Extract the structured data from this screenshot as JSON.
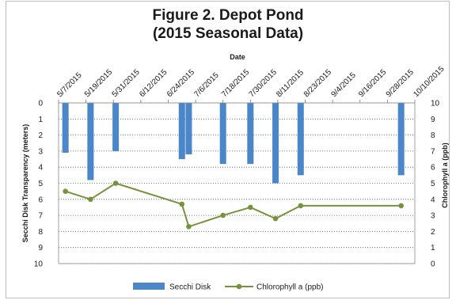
{
  "chart_data": {
    "type": "bar",
    "title": "Figure 2. Depot Pond",
    "subtitle": "(2015 Seasonal Data)",
    "xlabel": "Date",
    "ylabel_left": "Secchi Disk Transparency (meters)",
    "ylabel_right": "Chlorophyll a (ppb)",
    "x_ticks": [
      "5/7/2015",
      "5/19/2015",
      "5/31/2015",
      "6/12/2015",
      "6/24/2015",
      "7/6/2015",
      "7/18/2015",
      "7/30/2015",
      "8/11/2015",
      "8/23/2015",
      "9/4/2015",
      "9/16/2015",
      "9/28/2015",
      "10/10/2015"
    ],
    "x_range": [
      "5/7/2015",
      "10/10/2015"
    ],
    "ylim_left": [
      0,
      10
    ],
    "ylim_left_inverted": true,
    "ylim_right": [
      0,
      10
    ],
    "y_ticks_left": [
      "0",
      "1",
      "2",
      "3",
      "4",
      "5",
      "6",
      "7",
      "8",
      "9",
      "10"
    ],
    "y_ticks_right": [
      "10",
      "9",
      "8",
      "7",
      "6",
      "5",
      "4",
      "3",
      "2",
      "1",
      "0"
    ],
    "grid": true,
    "legend": "bottom",
    "series": [
      {
        "name": "Secchi Disk",
        "type": "bar",
        "axis": "left",
        "color": "#4a86c8",
        "points": [
          {
            "x": "5/10/2015",
            "y": 3.1
          },
          {
            "x": "5/21/2015",
            "y": 4.8
          },
          {
            "x": "6/1/2015",
            "y": 3.0
          },
          {
            "x": "6/30/2015",
            "y": 3.5
          },
          {
            "x": "7/3/2015",
            "y": 3.2
          },
          {
            "x": "7/18/2015",
            "y": 3.8
          },
          {
            "x": "7/30/2015",
            "y": 3.8
          },
          {
            "x": "8/10/2015",
            "y": 5.0
          },
          {
            "x": "8/21/2015",
            "y": 4.5
          },
          {
            "x": "10/4/2015",
            "y": 4.5
          }
        ]
      },
      {
        "name": "Chlorophyll a (ppb)",
        "type": "line",
        "axis": "right",
        "color": "#76923c",
        "points": [
          {
            "x": "5/10/2015",
            "y": 4.5
          },
          {
            "x": "5/21/2015",
            "y": 4.0
          },
          {
            "x": "6/1/2015",
            "y": 5.0
          },
          {
            "x": "6/30/2015",
            "y": 3.7
          },
          {
            "x": "7/3/2015",
            "y": 2.3
          },
          {
            "x": "7/18/2015",
            "y": 3.0
          },
          {
            "x": "7/30/2015",
            "y": 3.5
          },
          {
            "x": "8/10/2015",
            "y": 2.8
          },
          {
            "x": "8/21/2015",
            "y": 3.6
          },
          {
            "x": "10/4/2015",
            "y": 3.6
          }
        ]
      }
    ]
  }
}
